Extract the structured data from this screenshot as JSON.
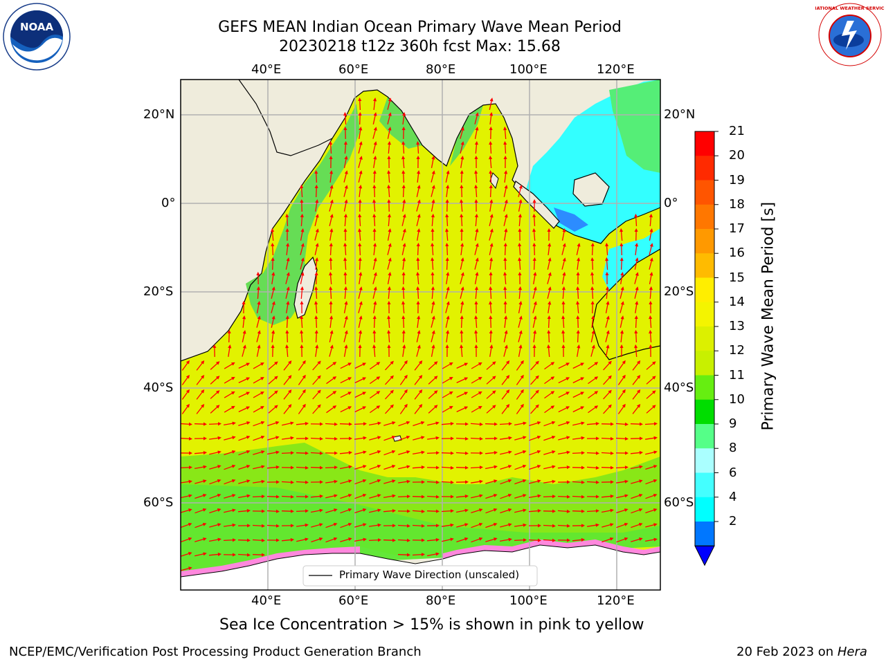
{
  "title": {
    "line1": "GEFS MEAN Indian Ocean Primary Wave Mean Period",
    "line2": "20230218 t12z 360h fcst   Max: 15.68"
  },
  "axes": {
    "lon_ticks": [
      "40°E",
      "60°E",
      "80°E",
      "100°E",
      "120°E"
    ],
    "lat_ticks": [
      "20°N",
      "0°",
      "20°S",
      "40°S",
      "60°S"
    ]
  },
  "colorbar": {
    "label": "Primary Wave Mean Period [s]",
    "ticks": [
      "21",
      "20",
      "19",
      "18",
      "17",
      "16",
      "15",
      "14",
      "13",
      "12",
      "11",
      "10",
      "9",
      "8",
      "6",
      "4",
      "2"
    ],
    "colors": [
      "#ff0000",
      "#ff2a00",
      "#ff5500",
      "#ff7700",
      "#ff9900",
      "#ffbb00",
      "#ffee00",
      "#f4f400",
      "#dcf000",
      "#c8f000",
      "#66ee11",
      "#00dd00",
      "#55ff88",
      "#aaffff",
      "#44ffff",
      "#00ffff",
      "#0077ff"
    ],
    "extend_color": "#0000ff"
  },
  "legend": {
    "label": "Primary Wave Direction (unscaled)"
  },
  "note": "Sea Ice Concentration > 15% is shown in pink to yellow",
  "footer": {
    "left": "NCEP/EMC/Verification Post Processing Product Generation Branch",
    "date": "20 Feb 2023 on ",
    "machine": "Hera"
  },
  "logos": {
    "noaa": "NOAA",
    "nws": "NATIONAL WEATHER SERVICE"
  },
  "colors": {
    "land": "#efecdc",
    "ocean": "#e2f200",
    "arrow": "#ff0000",
    "grid": "#b0b0b0"
  }
}
